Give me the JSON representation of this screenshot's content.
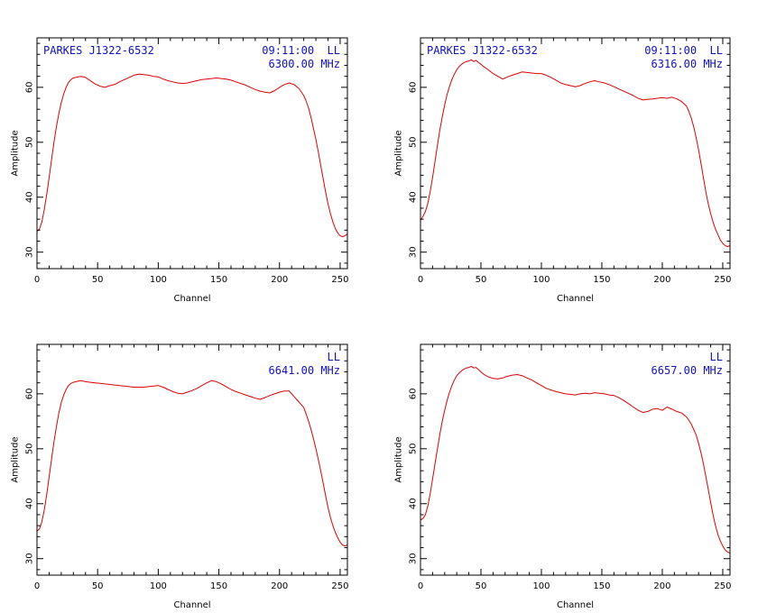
{
  "colors": {
    "trace": "#dd0000",
    "annotation": "#1010c0",
    "axes": "#000000"
  },
  "chart_data": [
    {
      "type": "line",
      "source": "PARKES J1322-6532",
      "time": "09:11:00",
      "polarization": "LL",
      "frequency": "6300.00 MHz",
      "xlabel": "Channel",
      "ylabel": "Amplitude",
      "xlim": [
        0,
        256
      ],
      "ylim": [
        27,
        69
      ],
      "xticks": [
        0,
        50,
        100,
        150,
        200,
        250
      ],
      "yticks": [
        30,
        40,
        50,
        60
      ],
      "grid": false,
      "x": [
        0,
        2,
        4,
        6,
        8,
        10,
        12,
        14,
        16,
        18,
        20,
        22,
        24,
        26,
        28,
        30,
        32,
        34,
        36,
        38,
        40,
        44,
        48,
        52,
        56,
        60,
        64,
        68,
        72,
        76,
        80,
        84,
        88,
        92,
        96,
        100,
        104,
        108,
        112,
        116,
        120,
        124,
        128,
        132,
        136,
        140,
        144,
        148,
        152,
        156,
        160,
        164,
        168,
        172,
        176,
        180,
        184,
        188,
        192,
        196,
        200,
        204,
        208,
        212,
        216,
        220,
        222,
        224,
        226,
        228,
        230,
        232,
        234,
        236,
        238,
        240,
        242,
        244,
        246,
        248,
        250,
        252,
        254,
        256
      ],
      "y": [
        33.8,
        34.2,
        35.5,
        37.8,
        40.5,
        43.5,
        46.8,
        50.0,
        52.8,
        55.2,
        57.2,
        58.8,
        60.0,
        60.9,
        61.4,
        61.7,
        61.8,
        61.9,
        62.0,
        61.9,
        61.8,
        61.2,
        60.6,
        60.2,
        60.0,
        60.3,
        60.5,
        61.0,
        61.4,
        61.8,
        62.2,
        62.4,
        62.3,
        62.2,
        62.0,
        61.9,
        61.5,
        61.2,
        61.0,
        60.8,
        60.7,
        60.8,
        61.0,
        61.2,
        61.4,
        61.5,
        61.6,
        61.7,
        61.6,
        61.5,
        61.3,
        61.0,
        60.7,
        60.4,
        60.0,
        59.6,
        59.3,
        59.1,
        59.0,
        59.4,
        60.0,
        60.5,
        60.8,
        60.5,
        59.8,
        58.5,
        57.5,
        56.2,
        54.5,
        52.5,
        50.5,
        48.2,
        45.8,
        43.4,
        41.0,
        38.8,
        37.0,
        35.5,
        34.3,
        33.5,
        33.0,
        32.8,
        33.0,
        33.3
      ]
    },
    {
      "type": "line",
      "source": "PARKES J1322-6532",
      "time": "09:11:00",
      "polarization": "LL",
      "frequency": "6316.00 MHz",
      "xlabel": "Channel",
      "ylabel": "Amplitude",
      "xlim": [
        0,
        256
      ],
      "ylim": [
        27,
        69
      ],
      "xticks": [
        0,
        50,
        100,
        150,
        200,
        250
      ],
      "yticks": [
        30,
        40,
        50,
        60
      ],
      "grid": false,
      "x": [
        0,
        2,
        4,
        6,
        8,
        10,
        12,
        14,
        16,
        18,
        20,
        22,
        24,
        26,
        28,
        30,
        32,
        34,
        36,
        38,
        40,
        42,
        44,
        46,
        48,
        50,
        52,
        56,
        60,
        64,
        68,
        72,
        76,
        80,
        84,
        88,
        92,
        96,
        100,
        104,
        108,
        112,
        116,
        120,
        124,
        128,
        132,
        136,
        140,
        144,
        148,
        152,
        156,
        160,
        164,
        168,
        172,
        176,
        180,
        184,
        188,
        192,
        196,
        200,
        204,
        208,
        212,
        216,
        220,
        222,
        224,
        226,
        228,
        230,
        232,
        234,
        236,
        238,
        240,
        242,
        244,
        246,
        248,
        250,
        252,
        254,
        256
      ],
      "y": [
        35.8,
        36.5,
        37.4,
        38.8,
        41.0,
        43.6,
        46.5,
        49.5,
        52.2,
        54.6,
        56.8,
        58.7,
        60.2,
        61.4,
        62.4,
        63.2,
        63.8,
        64.2,
        64.5,
        64.7,
        64.8,
        65.0,
        64.7,
        64.9,
        64.5,
        64.2,
        63.8,
        63.2,
        62.5,
        62.0,
        61.5,
        61.9,
        62.2,
        62.5,
        62.8,
        62.7,
        62.6,
        62.5,
        62.5,
        62.2,
        61.8,
        61.3,
        60.8,
        60.5,
        60.3,
        60.1,
        60.3,
        60.7,
        61.0,
        61.2,
        61.0,
        60.8,
        60.5,
        60.1,
        59.7,
        59.3,
        58.9,
        58.5,
        58.0,
        57.7,
        57.8,
        57.9,
        58.0,
        58.1,
        58.0,
        58.2,
        57.9,
        57.4,
        56.6,
        55.6,
        54.4,
        52.8,
        50.8,
        48.6,
        46.2,
        43.6,
        41.0,
        38.8,
        37.0,
        35.5,
        34.2,
        33.2,
        32.2,
        31.6,
        31.2,
        31.0,
        31.2
      ]
    },
    {
      "type": "line",
      "source": "",
      "time": "",
      "polarization": "LL",
      "frequency": "6641.00 MHz",
      "xlabel": "Channel",
      "ylabel": "Amplitude",
      "xlim": [
        0,
        256
      ],
      "ylim": [
        27,
        69
      ],
      "xticks": [
        0,
        50,
        100,
        150,
        200,
        250
      ],
      "yticks": [
        30,
        40,
        50,
        60
      ],
      "grid": false,
      "x": [
        0,
        2,
        4,
        6,
        8,
        10,
        12,
        14,
        16,
        18,
        20,
        22,
        24,
        26,
        28,
        30,
        32,
        34,
        36,
        38,
        40,
        44,
        48,
        52,
        56,
        60,
        64,
        68,
        72,
        76,
        80,
        84,
        88,
        92,
        96,
        100,
        104,
        108,
        112,
        116,
        120,
        124,
        128,
        132,
        136,
        140,
        144,
        148,
        152,
        156,
        160,
        164,
        168,
        172,
        176,
        180,
        184,
        188,
        192,
        196,
        200,
        204,
        208,
        212,
        216,
        220,
        222,
        224,
        226,
        228,
        230,
        232,
        234,
        236,
        238,
        240,
        242,
        244,
        246,
        248,
        250,
        252,
        254,
        256
      ],
      "y": [
        35.0,
        35.4,
        36.7,
        38.9,
        41.7,
        44.8,
        48.1,
        51.3,
        54.0,
        56.5,
        58.4,
        59.8,
        60.8,
        61.5,
        61.9,
        62.1,
        62.2,
        62.3,
        62.4,
        62.3,
        62.2,
        62.1,
        62.0,
        61.9,
        61.8,
        61.7,
        61.6,
        61.5,
        61.4,
        61.3,
        61.2,
        61.2,
        61.2,
        61.3,
        61.4,
        61.5,
        61.2,
        60.8,
        60.4,
        60.1,
        60.0,
        60.3,
        60.6,
        61.0,
        61.5,
        62.0,
        62.4,
        62.2,
        61.8,
        61.3,
        60.8,
        60.4,
        60.1,
        59.8,
        59.5,
        59.2,
        59.0,
        59.3,
        59.7,
        60.0,
        60.3,
        60.5,
        60.5,
        59.5,
        58.5,
        57.5,
        56.3,
        55.0,
        53.5,
        51.8,
        50.0,
        48.0,
        46.0,
        43.8,
        41.5,
        39.3,
        37.5,
        36.0,
        34.8,
        33.8,
        33.0,
        32.5,
        32.3,
        32.5
      ]
    },
    {
      "type": "line",
      "source": "",
      "time": "",
      "polarization": "LL",
      "frequency": "6657.00 MHz",
      "xlabel": "Channel",
      "ylabel": "Amplitude",
      "xlim": [
        0,
        256
      ],
      "ylim": [
        27,
        69
      ],
      "xticks": [
        0,
        50,
        100,
        150,
        200,
        250
      ],
      "yticks": [
        30,
        40,
        50,
        60
      ],
      "grid": false,
      "x": [
        0,
        2,
        4,
        6,
        8,
        10,
        12,
        14,
        16,
        18,
        20,
        22,
        24,
        26,
        28,
        30,
        32,
        34,
        36,
        38,
        40,
        42,
        44,
        46,
        48,
        50,
        52,
        56,
        60,
        64,
        68,
        72,
        76,
        80,
        84,
        88,
        92,
        96,
        100,
        104,
        108,
        112,
        116,
        120,
        124,
        128,
        132,
        136,
        140,
        144,
        148,
        152,
        156,
        160,
        164,
        168,
        172,
        176,
        180,
        184,
        188,
        192,
        196,
        200,
        204,
        208,
        212,
        216,
        220,
        222,
        224,
        226,
        228,
        230,
        232,
        234,
        236,
        238,
        240,
        242,
        244,
        246,
        248,
        250,
        252,
        254,
        256
      ],
      "y": [
        37.0,
        37.3,
        38.0,
        39.5,
        41.8,
        44.5,
        47.3,
        50.0,
        52.6,
        55.0,
        57.0,
        58.8,
        60.3,
        61.5,
        62.5,
        63.3,
        63.8,
        64.2,
        64.5,
        64.7,
        64.8,
        65.0,
        64.7,
        64.8,
        64.4,
        64.0,
        63.6,
        63.1,
        62.8,
        62.7,
        62.9,
        63.2,
        63.4,
        63.5,
        63.3,
        62.9,
        62.5,
        62.0,
        61.5,
        61.0,
        60.7,
        60.4,
        60.2,
        60.0,
        59.9,
        59.8,
        60.0,
        60.1,
        60.0,
        60.2,
        60.1,
        60.0,
        59.8,
        59.7,
        59.3,
        58.8,
        58.2,
        57.6,
        57.0,
        56.6,
        56.8,
        57.2,
        57.3,
        57.0,
        57.6,
        57.2,
        56.8,
        56.5,
        55.8,
        55.2,
        54.5,
        53.5,
        52.5,
        51.0,
        49.3,
        47.3,
        45.0,
        42.6,
        40.2,
        38.0,
        36.0,
        34.4,
        33.2,
        32.3,
        31.6,
        31.2,
        31.0
      ]
    }
  ]
}
